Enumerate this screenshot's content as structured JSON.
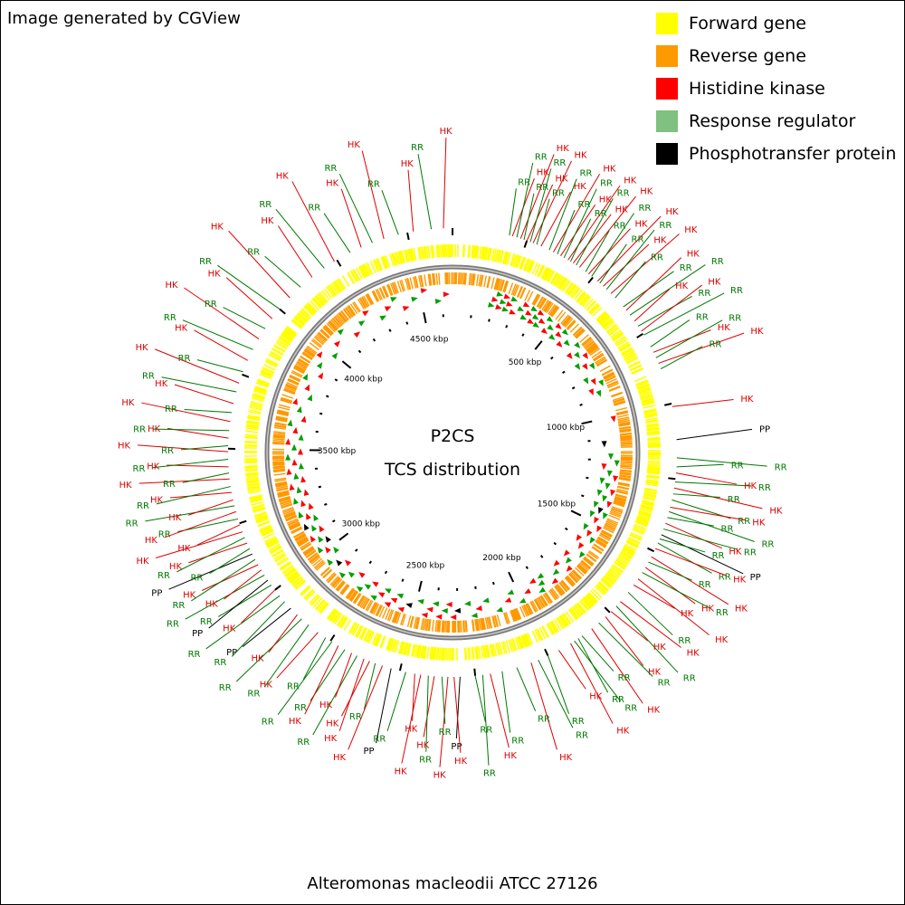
{
  "credit": "Image generated by CGView",
  "footer_organism": "Alteromonas macleodii ATCC 27126",
  "center": {
    "line1": "P2CS",
    "line2": "TCS distribution"
  },
  "legend": [
    {
      "label": "Forward gene",
      "color": "#ffff00"
    },
    {
      "label": "Reverse gene",
      "color": "#ff9900"
    },
    {
      "label": "Histidine kinase",
      "color": "#ff0000"
    },
    {
      "label": "Response regulator",
      "color": "#80c080"
    },
    {
      "label": "Phosphotransfer protein",
      "color": "#000000"
    }
  ],
  "label_colors": {
    "HK": "#dd0000",
    "RR": "#007700",
    "PP": "#000000"
  },
  "genome_length_kbp": 4650,
  "ticks": [
    {
      "label": "500 kbp",
      "kbp": 500
    },
    {
      "label": "1000 kbp",
      "kbp": 1000
    },
    {
      "label": "1500 kbp",
      "kbp": 1500
    },
    {
      "label": "2000 kbp",
      "kbp": 2000
    },
    {
      "label": "2500 kbp",
      "kbp": 2500
    },
    {
      "label": "3000 kbp",
      "kbp": 3000
    },
    {
      "label": "3500 kbp",
      "kbp": 3500
    },
    {
      "label": "4000 kbp",
      "kbp": 4000
    },
    {
      "label": "4500 kbp",
      "kbp": 4500
    }
  ],
  "features": [
    {
      "t": "RR",
      "kbp": 190
    },
    {
      "t": "HK",
      "kbp": 200
    },
    {
      "t": "RR",
      "kbp": 215
    },
    {
      "t": "HK",
      "kbp": 228
    },
    {
      "t": "RR",
      "kbp": 240
    },
    {
      "t": "HK",
      "kbp": 250
    },
    {
      "t": "RR",
      "kbp": 262
    },
    {
      "t": "HK",
      "kbp": 272
    },
    {
      "t": "RR",
      "kbp": 285
    },
    {
      "t": "HK",
      "kbp": 300
    },
    {
      "t": "RR",
      "kbp": 330
    },
    {
      "t": "HK",
      "kbp": 345
    },
    {
      "t": "RR",
      "kbp": 360
    },
    {
      "t": "HK",
      "kbp": 372
    },
    {
      "t": "RR",
      "kbp": 385
    },
    {
      "t": "HK",
      "kbp": 400
    },
    {
      "t": "RR",
      "kbp": 410
    },
    {
      "t": "HK",
      "kbp": 420
    },
    {
      "t": "RR",
      "kbp": 432
    },
    {
      "t": "HK",
      "kbp": 445
    },
    {
      "t": "RR",
      "kbp": 470
    },
    {
      "t": "HK",
      "kbp": 482
    },
    {
      "t": "RR",
      "kbp": 495
    },
    {
      "t": "HK",
      "kbp": 520
    },
    {
      "t": "RR",
      "kbp": 530
    },
    {
      "t": "HK",
      "kbp": 545
    },
    {
      "t": "RR",
      "kbp": 560
    },
    {
      "t": "HK",
      "kbp": 580
    },
    {
      "t": "RR",
      "kbp": 600
    },
    {
      "t": "RR",
      "kbp": 640
    },
    {
      "t": "HK",
      "kbp": 655
    },
    {
      "t": "RR",
      "kbp": 675
    },
    {
      "t": "HK",
      "kbp": 700
    },
    {
      "t": "RR",
      "kbp": 720
    },
    {
      "t": "HK",
      "kbp": 740
    },
    {
      "t": "RR",
      "kbp": 755
    },
    {
      "t": "RR",
      "kbp": 800
    },
    {
      "t": "HK",
      "kbp": 820
    },
    {
      "t": "RR",
      "kbp": 840
    },
    {
      "t": "HK",
      "kbp": 860
    },
    {
      "t": "RR",
      "kbp": 880
    },
    {
      "t": "HK",
      "kbp": 1010
    },
    {
      "t": "PP",
      "kbp": 1120
    },
    {
      "t": "RR",
      "kbp": 1180
    },
    {
      "t": "RR",
      "kbp": 1210
    },
    {
      "t": "HK",
      "kbp": 1230
    },
    {
      "t": "RR",
      "kbp": 1260
    },
    {
      "t": "HK",
      "kbp": 1280
    },
    {
      "t": "RR",
      "kbp": 1300
    },
    {
      "t": "RR",
      "kbp": 1320
    },
    {
      "t": "HK",
      "kbp": 1345
    },
    {
      "t": "RR",
      "kbp": 1360
    },
    {
      "t": "RR",
      "kbp": 1380
    },
    {
      "t": "HK",
      "kbp": 1400
    },
    {
      "t": "RR",
      "kbp": 1420
    },
    {
      "t": "PP",
      "kbp": 1440
    },
    {
      "t": "RR",
      "kbp": 1455
    },
    {
      "t": "RR",
      "kbp": 1470
    },
    {
      "t": "HK",
      "kbp": 1490
    },
    {
      "t": "HK",
      "kbp": 1520
    },
    {
      "t": "RR",
      "kbp": 1540
    },
    {
      "t": "HK",
      "kbp": 1560
    },
    {
      "t": "RR",
      "kbp": 1580
    },
    {
      "t": "HK",
      "kbp": 1605
    },
    {
      "t": "HK",
      "kbp": 1630
    },
    {
      "t": "RR",
      "kbp": 1660
    },
    {
      "t": "HK",
      "kbp": 1700
    },
    {
      "t": "RR",
      "kbp": 1720
    },
    {
      "t": "HK",
      "kbp": 1745
    },
    {
      "t": "HK",
      "kbp": 1770
    },
    {
      "t": "RR",
      "kbp": 1800
    },
    {
      "t": "HK",
      "kbp": 1830
    },
    {
      "t": "RR",
      "kbp": 1870
    },
    {
      "t": "RR",
      "kbp": 1885
    },
    {
      "t": "RR",
      "kbp": 1900
    },
    {
      "t": "HK",
      "kbp": 1915
    },
    {
      "t": "HK",
      "kbp": 1960
    },
    {
      "t": "RR",
      "kbp": 2000
    },
    {
      "t": "RR",
      "kbp": 2035
    },
    {
      "t": "HK",
      "kbp": 2060
    },
    {
      "t": "RR",
      "kbp": 2110
    },
    {
      "t": "RR",
      "kbp": 2160
    },
    {
      "t": "HK",
      "kbp": 2200
    },
    {
      "t": "RR",
      "kbp": 2225
    },
    {
      "t": "RR",
      "kbp": 2250
    },
    {
      "t": "PP",
      "kbp": 2300
    },
    {
      "t": "HK",
      "kbp": 2320
    },
    {
      "t": "HK",
      "kbp": 2340
    },
    {
      "t": "RR",
      "kbp": 2360
    },
    {
      "t": "HK",
      "kbp": 2385
    },
    {
      "t": "RR",
      "kbp": 2405
    },
    {
      "t": "HK",
      "kbp": 2430
    },
    {
      "t": "HK",
      "kbp": 2450
    },
    {
      "t": "RR",
      "kbp": 2480
    },
    {
      "t": "PP",
      "kbp": 2530
    },
    {
      "t": "HK",
      "kbp": 2560
    },
    {
      "t": "RR",
      "kbp": 2585
    },
    {
      "t": "HK",
      "kbp": 2605
    },
    {
      "t": "HK",
      "kbp": 2625
    },
    {
      "t": "RR",
      "kbp": 2650
    },
    {
      "t": "HK",
      "kbp": 2670
    },
    {
      "t": "RR",
      "kbp": 2695
    },
    {
      "t": "HK",
      "kbp": 2720
    },
    {
      "t": "RR",
      "kbp": 2745
    },
    {
      "t": "RR",
      "kbp": 2770
    },
    {
      "t": "HK",
      "kbp": 2800
    },
    {
      "t": "RR",
      "kbp": 2840
    },
    {
      "t": "RR",
      "kbp": 2870
    },
    {
      "t": "HK",
      "kbp": 2890
    },
    {
      "t": "PP",
      "kbp": 2920
    },
    {
      "t": "RR",
      "kbp": 2950
    },
    {
      "t": "RR",
      "kbp": 2975
    },
    {
      "t": "HK",
      "kbp": 3000
    },
    {
      "t": "RR",
      "kbp": 3020
    },
    {
      "t": "PP",
      "kbp": 3040
    },
    {
      "t": "RR",
      "kbp": 3060
    },
    {
      "t": "HK",
      "kbp": 3080
    },
    {
      "t": "HK",
      "kbp": 3100
    },
    {
      "t": "RR",
      "kbp": 3120
    },
    {
      "t": "PP",
      "kbp": 3140
    },
    {
      "t": "RR",
      "kbp": 3160
    },
    {
      "t": "HK",
      "kbp": 3180
    },
    {
      "t": "RR",
      "kbp": 3200
    },
    {
      "t": "HK",
      "kbp": 3220
    },
    {
      "t": "HK",
      "kbp": 3245
    },
    {
      "t": "RR",
      "kbp": 3265
    },
    {
      "t": "HK",
      "kbp": 3290
    },
    {
      "t": "RR",
      "kbp": 3310
    },
    {
      "t": "HK",
      "kbp": 3330
    },
    {
      "t": "HK",
      "kbp": 3355
    },
    {
      "t": "RR",
      "kbp": 3375
    },
    {
      "t": "HK",
      "kbp": 3400
    },
    {
      "t": "RR",
      "kbp": 3420
    },
    {
      "t": "HK",
      "kbp": 3440
    },
    {
      "t": "RR",
      "kbp": 3465
    },
    {
      "t": "HK",
      "kbp": 3490
    },
    {
      "t": "RR",
      "kbp": 3510
    },
    {
      "t": "HK",
      "kbp": 3535
    },
    {
      "t": "RR",
      "kbp": 3560
    },
    {
      "t": "HK",
      "kbp": 3590
    },
    {
      "t": "RR",
      "kbp": 3620
    },
    {
      "t": "HK",
      "kbp": 3650
    },
    {
      "t": "RR",
      "kbp": 3690
    },
    {
      "t": "HK",
      "kbp": 3720
    },
    {
      "t": "RR",
      "kbp": 3760
    },
    {
      "t": "HK",
      "kbp": 3800
    },
    {
      "t": "RR",
      "kbp": 3840
    },
    {
      "t": "HK",
      "kbp": 3880
    },
    {
      "t": "RR",
      "kbp": 3920
    },
    {
      "t": "HK",
      "kbp": 3960
    },
    {
      "t": "RR",
      "kbp": 4000
    },
    {
      "t": "HK",
      "kbp": 4050
    },
    {
      "t": "RR",
      "kbp": 4100
    },
    {
      "t": "HK",
      "kbp": 4150
    },
    {
      "t": "RR",
      "kbp": 4200
    },
    {
      "t": "HK",
      "kbp": 4240
    },
    {
      "t": "RR",
      "kbp": 4300
    },
    {
      "t": "HK",
      "kbp": 4340
    },
    {
      "t": "RR",
      "kbp": 4380
    },
    {
      "t": "HK",
      "kbp": 4420
    },
    {
      "t": "RR",
      "kbp": 4470
    },
    {
      "t": "HK",
      "kbp": 4520
    },
    {
      "t": "RR",
      "kbp": 4580
    },
    {
      "t": "HK",
      "kbp": 4620
    }
  ]
}
